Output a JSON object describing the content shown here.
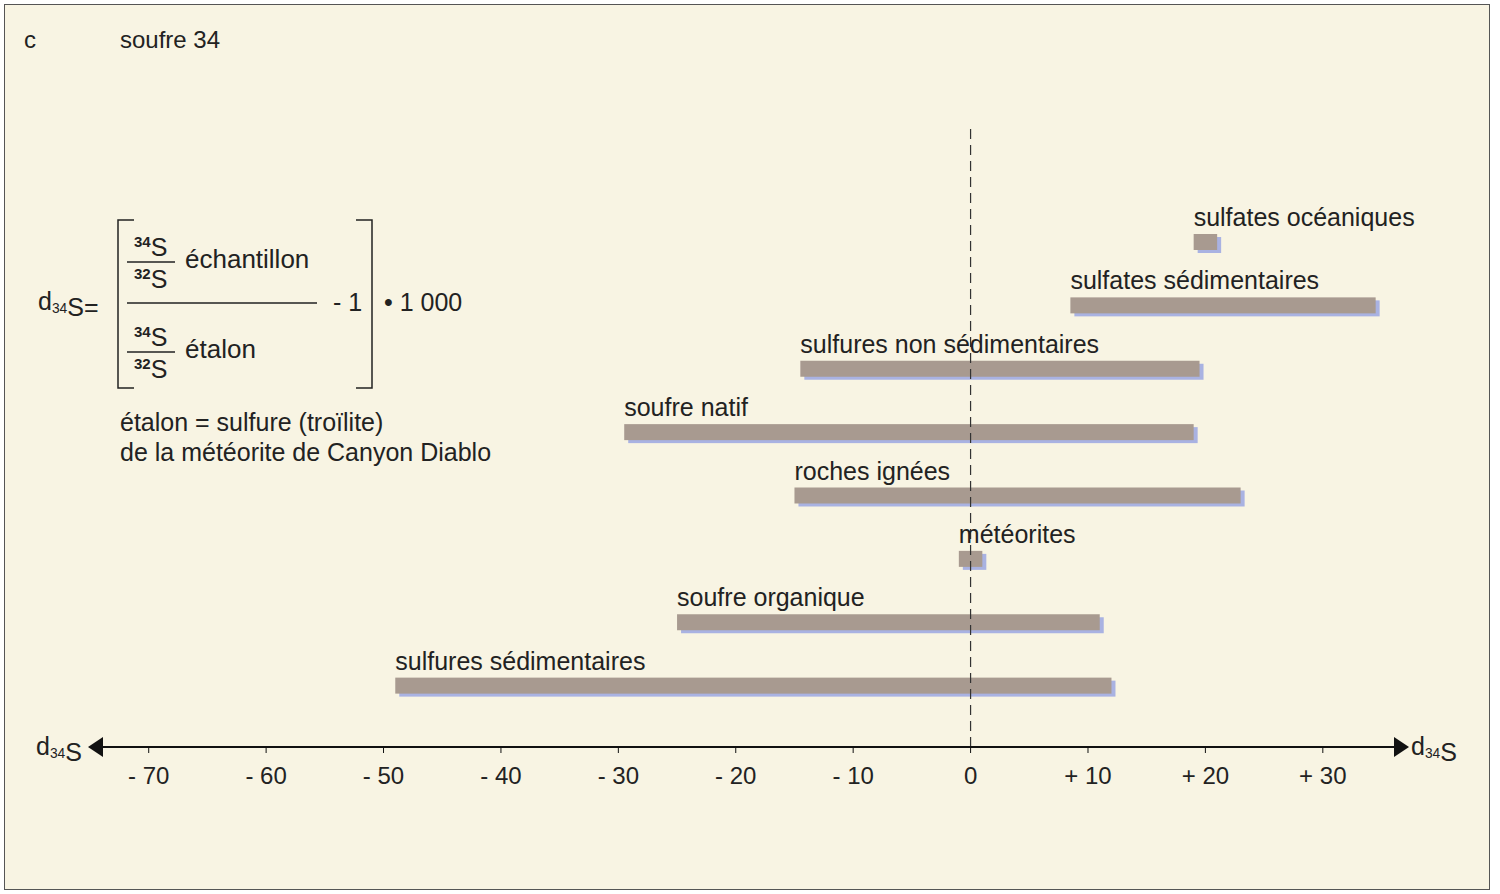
{
  "chart_data": {
    "type": "bar",
    "orientation": "horizontal",
    "panel_label": "c",
    "title": "soufre 34",
    "x_label": "d34S",
    "categories": [
      "sulfates océaniques",
      "sulfates sédimentaires",
      "sulfures non sédimentaires",
      "soufre natif",
      "roches ignées",
      "météorites",
      "soufre organique",
      "sulfures sédimentaires"
    ],
    "values": [
      [
        19,
        21
      ],
      [
        8.5,
        34.5
      ],
      [
        -14.5,
        19.5
      ],
      [
        -29.5,
        19
      ],
      [
        -15,
        23
      ],
      [
        -1,
        1
      ],
      [
        -25,
        11
      ],
      [
        -49,
        12
      ]
    ],
    "color": "#a89a90",
    "xlim": [
      -75,
      37
    ],
    "xticks": [
      {
        "value": -70,
        "label": "- 70"
      },
      {
        "value": -60,
        "label": "- 60"
      },
      {
        "value": -50,
        "label": "- 50"
      },
      {
        "value": -40,
        "label": "- 40"
      },
      {
        "value": -30,
        "label": "- 30"
      },
      {
        "value": -20,
        "label": "- 20"
      },
      {
        "value": -10,
        "label": "- 10"
      },
      0,
      {
        "value": 10,
        "label": "+ 10"
      },
      {
        "value": 20,
        "label": "+ 20"
      },
      {
        "value": 30,
        "label": "+ 30"
      }
    ],
    "grid": false,
    "tick_labels": "x",
    "reference_line": {
      "x": 0,
      "line_style": "dashed"
    },
    "annotations": {
      "formula": {
        "lhs": "d34S=",
        "numerator": {
          "top": "34S",
          "bottom": "32S",
          "label": "échantillon"
        },
        "denominator": {
          "top": "34S",
          "bottom": "32S",
          "label": "étalon"
        },
        "minus": "- 1",
        "factor": "• 1 000"
      },
      "notes": [
        "étalon = sulfure (troïlite)",
        "de la météorite de Canyon Diablo"
      ]
    }
  }
}
